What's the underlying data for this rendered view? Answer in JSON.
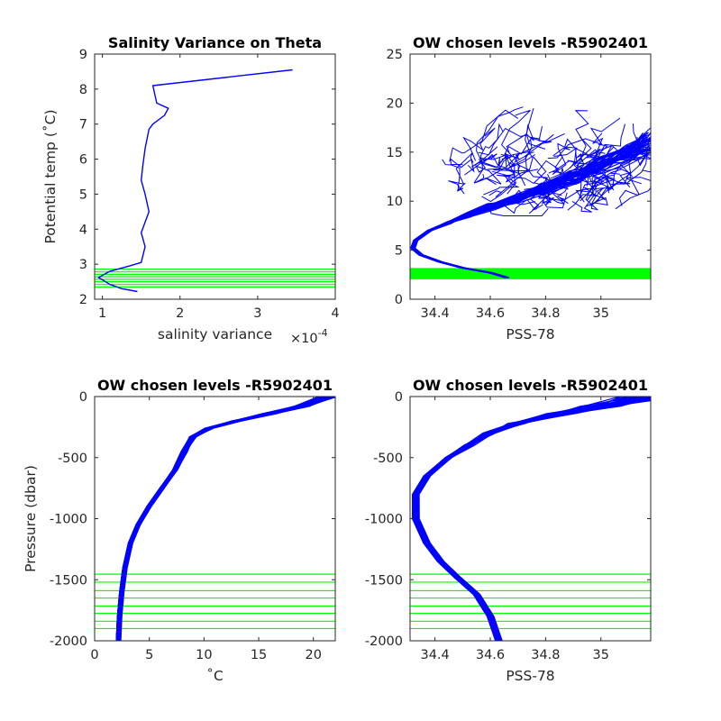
{
  "colors": {
    "profile": "#0000ff",
    "levels": "#00ff00",
    "axis": "#262626"
  },
  "chart_data": [
    {
      "type": "line",
      "title": "Salinity Variance on Theta",
      "xlabel": "salinity variance",
      "xexponent": "×10^-4",
      "ylabel": "Potential temp (˚C)",
      "xlim": [
        0.9,
        4
      ],
      "ylim": [
        2,
        9
      ],
      "xticks": [
        "1",
        "2",
        "3",
        "4"
      ],
      "yticks": [
        "2",
        "3",
        "4",
        "5",
        "6",
        "7",
        "8",
        "9"
      ],
      "series": [
        {
          "x": [
            1.45,
            1.25,
            1.1,
            0.95,
            1.1,
            1.35,
            1.5,
            1.55,
            1.5,
            1.55,
            1.6,
            1.55,
            1.5,
            1.52,
            1.55,
            1.6,
            1.65,
            1.8,
            1.85,
            1.7,
            1.68,
            1.65,
            3.45
          ],
          "y": [
            2.22,
            2.3,
            2.42,
            2.62,
            2.8,
            2.95,
            3.05,
            3.5,
            3.9,
            4.2,
            4.5,
            5.0,
            5.4,
            5.8,
            6.3,
            6.85,
            7.0,
            7.25,
            7.45,
            7.6,
            7.8,
            8.1,
            8.55
          ]
        }
      ],
      "levels": [
        2.35,
        2.42,
        2.5,
        2.57,
        2.64,
        2.71,
        2.78,
        2.86
      ]
    },
    {
      "type": "line",
      "title": "OW chosen levels -R5902401",
      "xlabel": "PSS-78",
      "ylabel": "",
      "xlim": [
        34.31,
        35.18
      ],
      "ylim": [
        0,
        25
      ],
      "xticks": [
        "34.4",
        "34.6",
        "34.8",
        "35"
      ],
      "yticks": [
        "0",
        "5",
        "10",
        "15",
        "20",
        "25"
      ],
      "series": [
        {
          "x": [
            34.66,
            34.6,
            34.5,
            34.42,
            34.35,
            34.32,
            34.33,
            34.38,
            34.45,
            34.52,
            34.6,
            34.7,
            34.8,
            34.9,
            35.0,
            35.1,
            35.18
          ],
          "y": [
            2.2,
            2.7,
            3.2,
            3.8,
            4.5,
            5.2,
            6.0,
            7.0,
            7.8,
            8.6,
            9.4,
            10.3,
            11.3,
            12.4,
            13.6,
            14.8,
            16.0
          ]
        }
      ],
      "levels": [
        2.35,
        2.42,
        2.5,
        2.57,
        2.64,
        2.71,
        2.78,
        2.86
      ]
    },
    {
      "type": "line",
      "title": "OW chosen levels -R5902401",
      "xlabel": "˚C",
      "ylabel": "Pressure (dbar)",
      "xlim": [
        0,
        22
      ],
      "ylim": [
        -2000,
        0
      ],
      "xticks": [
        "0",
        "5",
        "10",
        "15",
        "20"
      ],
      "yticks": [
        "-2000",
        "-1500",
        "-1000",
        "-500",
        "0"
      ],
      "series": [
        {
          "x": [
            2.2,
            2.3,
            2.5,
            2.8,
            3.3,
            4.0,
            5.0,
            6.2,
            7.4,
            8.2,
            9.0,
            10.5,
            13.0,
            16.0,
            19.0,
            21.5
          ],
          "y": [
            -2000,
            -1800,
            -1600,
            -1400,
            -1200,
            -1050,
            -900,
            -750,
            -600,
            -450,
            -330,
            -260,
            -200,
            -140,
            -80,
            0
          ]
        }
      ],
      "levels": [
        -1455,
        -1520,
        -1590,
        -1650,
        -1715,
        -1775,
        -1840,
        -1900
      ]
    },
    {
      "type": "line",
      "title": "OW chosen levels -R5902401",
      "xlabel": "PSS-78",
      "ylabel": "",
      "xlim": [
        34.31,
        35.18
      ],
      "ylim": [
        -2000,
        0
      ],
      "xticks": [
        "34.4",
        "34.6",
        "34.8",
        "35"
      ],
      "yticks": [
        "-2000",
        "-1500",
        "-1000",
        "-500",
        "0"
      ],
      "series": [
        {
          "x": [
            34.63,
            34.6,
            34.55,
            34.48,
            34.42,
            34.37,
            34.33,
            34.33,
            34.37,
            34.45,
            34.52,
            34.6,
            34.7,
            34.85,
            35.0,
            35.18
          ],
          "y": [
            -2000,
            -1800,
            -1620,
            -1480,
            -1350,
            -1200,
            -1000,
            -800,
            -650,
            -500,
            -400,
            -300,
            -220,
            -140,
            -80,
            0
          ]
        }
      ],
      "levels": [
        -1455,
        -1520,
        -1590,
        -1650,
        -1715,
        -1775,
        -1840,
        -1900
      ]
    }
  ]
}
